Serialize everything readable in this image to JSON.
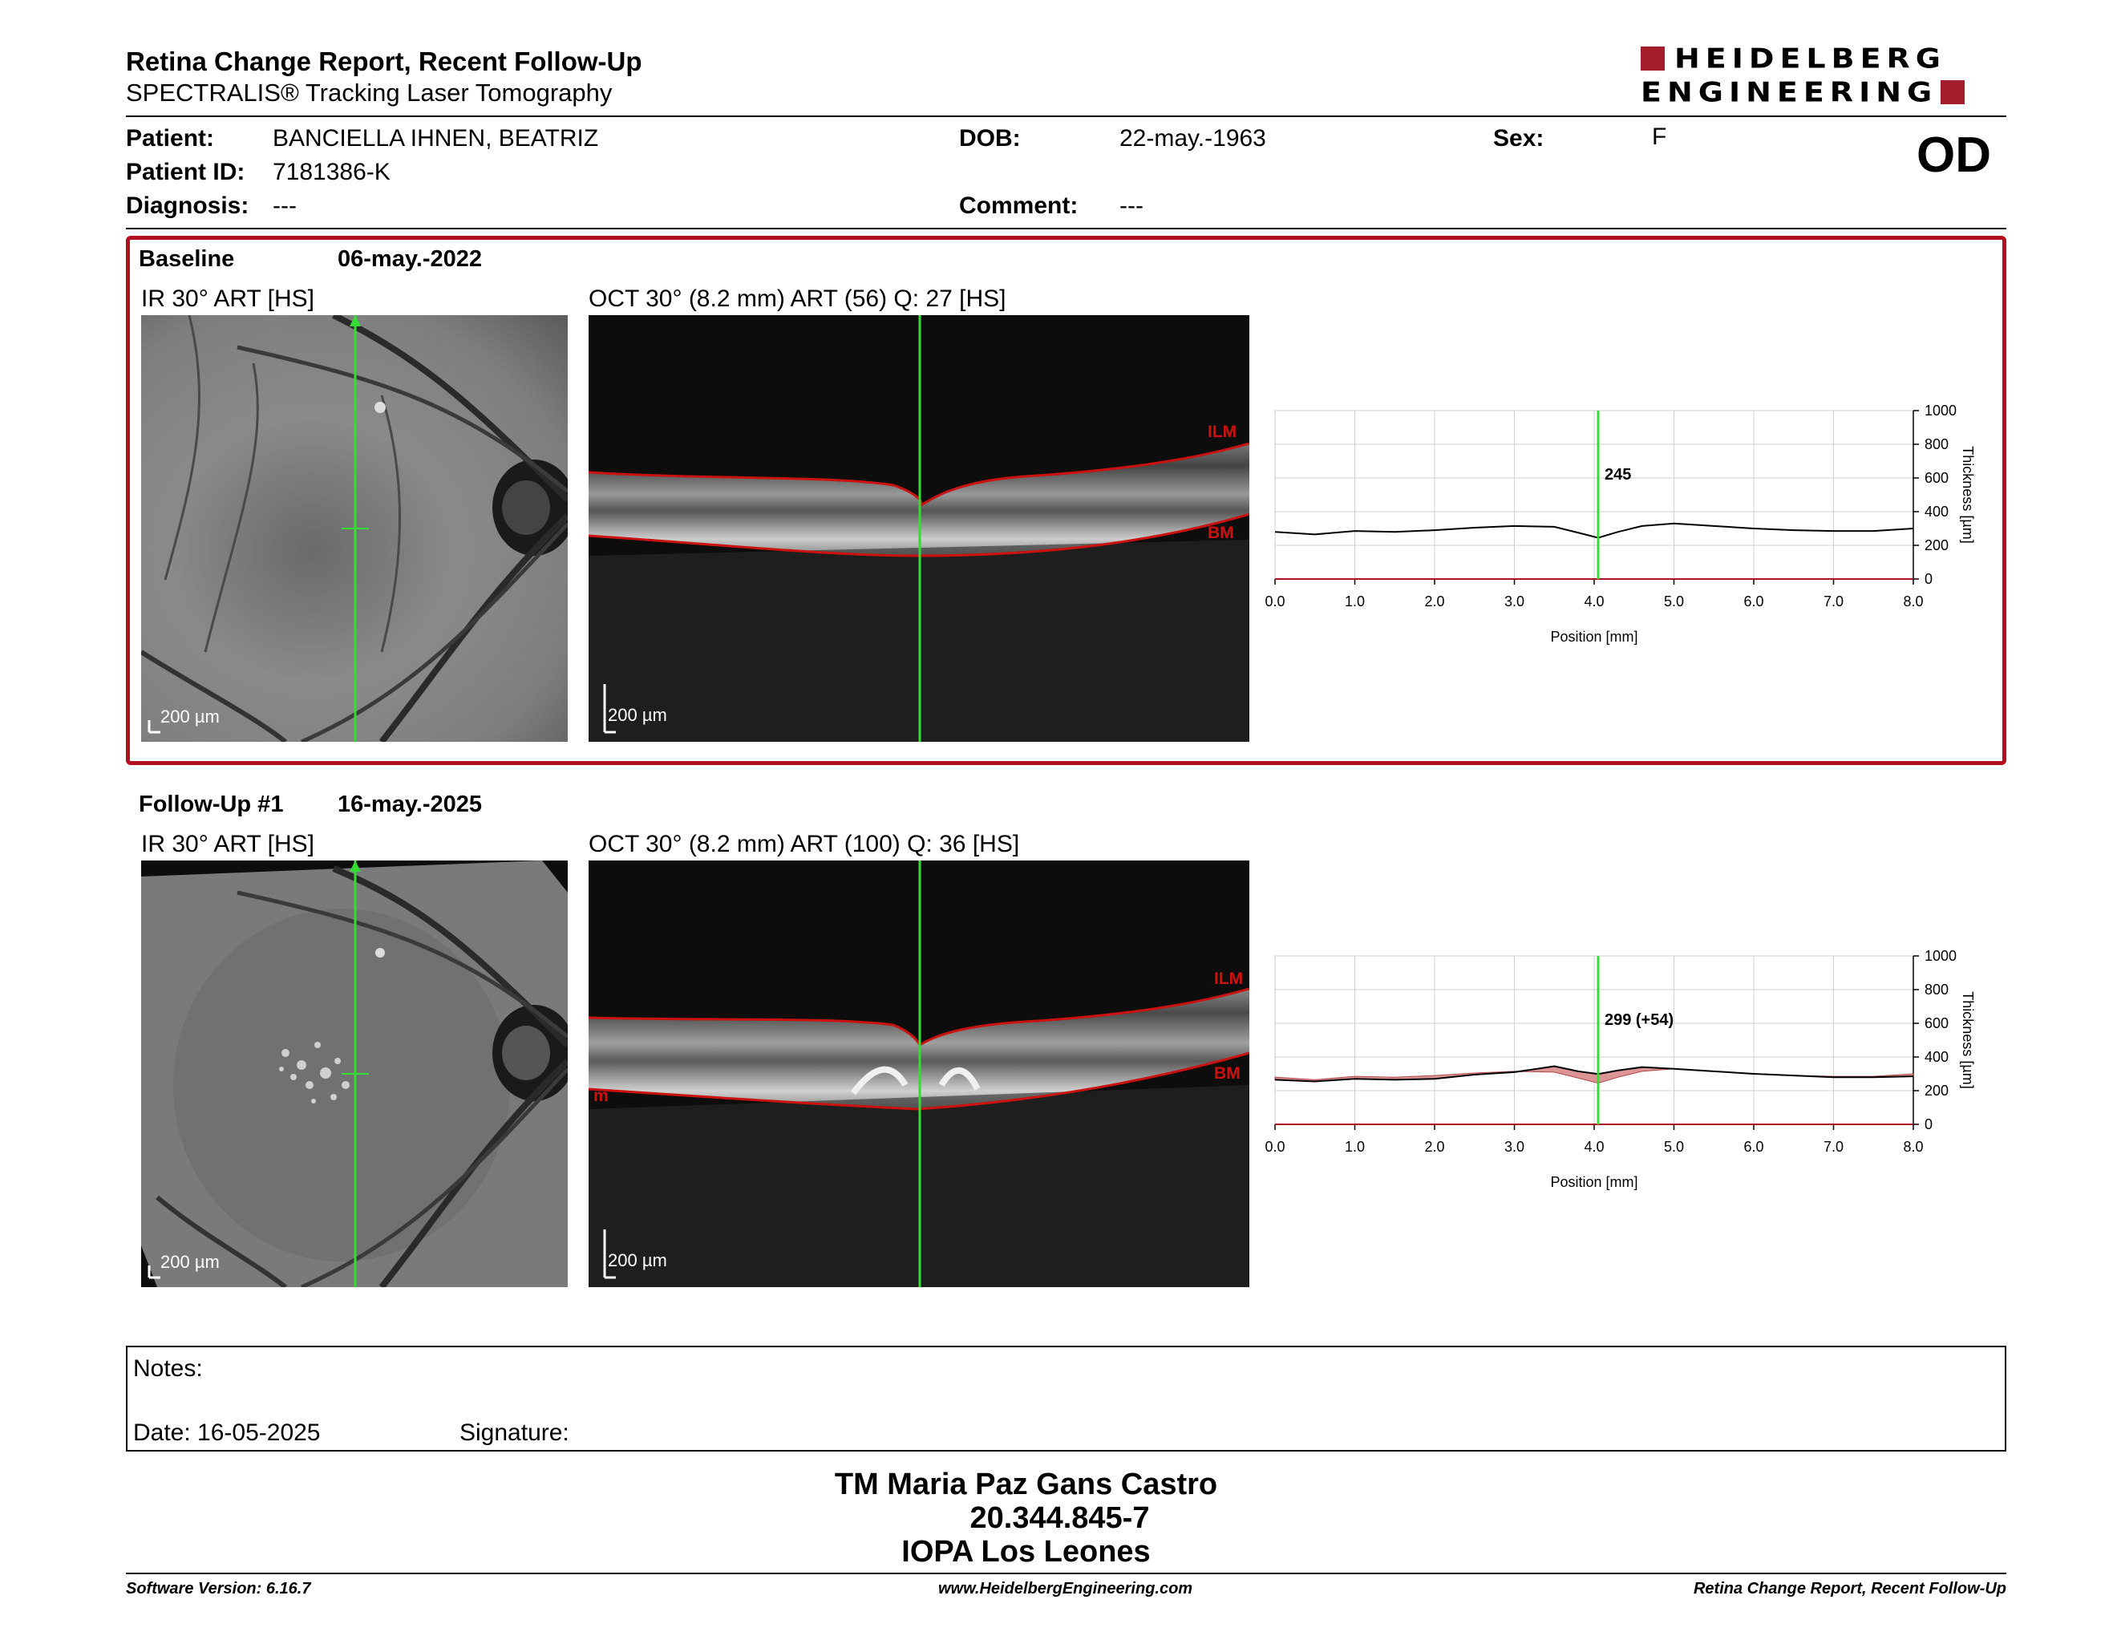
{
  "header": {
    "title": "Retina Change Report, Recent Follow-Up",
    "subtitle": "SPECTRALIS® Tracking Laser Tomography",
    "logo_line1": "HEIDELBERG",
    "logo_line2": "ENGINEERING"
  },
  "patient": {
    "patient_label": "Patient:",
    "patient_value": "BANCIELLA IHNEN, BEATRIZ",
    "id_label": "Patient ID:",
    "id_value": "7181386-K",
    "diagnosis_label": "Diagnosis:",
    "diagnosis_value": "---",
    "dob_label": "DOB:",
    "dob_value": "22-may.-1963",
    "comment_label": "Comment:",
    "comment_value": "---",
    "sex_label": "Sex:",
    "sex_value": "F",
    "eye": "OD"
  },
  "baseline": {
    "label": "Baseline",
    "date": "06-may.-2022",
    "ir_label": "IR 30° ART [HS]",
    "oct_label": "OCT 30° (8.2 mm) ART (56) Q: 27 [HS]",
    "scale_ir": "200 µm",
    "scale_oct": "200 µm",
    "ilm": "ILM",
    "bm": "BM"
  },
  "followup": {
    "label": "Follow-Up #1",
    "date": "16-may.-2025",
    "ir_label": "IR 30° ART [HS]",
    "oct_label": "OCT 30° (8.2 mm) ART (100) Q: 36 [HS]",
    "scale_ir": "200 µm",
    "scale_oct": "200 µm",
    "ilm": "ILM",
    "bm": "BM",
    "m": "m"
  },
  "chart_data": [
    {
      "type": "line",
      "x": [
        0.0,
        0.5,
        1.0,
        1.5,
        2.0,
        2.5,
        3.0,
        3.5,
        3.8,
        4.05,
        4.3,
        4.6,
        5.0,
        5.5,
        6.0,
        6.5,
        7.0,
        7.5,
        8.0
      ],
      "y": [
        280,
        265,
        285,
        280,
        290,
        305,
        315,
        310,
        275,
        245,
        280,
        315,
        330,
        315,
        300,
        290,
        285,
        285,
        300
      ],
      "marker_x": 4.05,
      "marker_label": "245",
      "xlabel": "Position [mm]",
      "ylabel": "Thickness [µm]",
      "xlim": [
        0,
        8
      ],
      "ylim": [
        0,
        1000
      ],
      "xticks": [
        "0.0",
        "1.0",
        "2.0",
        "3.0",
        "4.0",
        "5.0",
        "6.0",
        "7.0",
        "8.0"
      ],
      "yticks": [
        "0",
        "200",
        "400",
        "600",
        "800",
        "1000"
      ],
      "grid": true,
      "line_color": "#000000",
      "marker_color": "#33dd33"
    },
    {
      "type": "line",
      "x": [
        0.0,
        0.5,
        1.0,
        1.5,
        2.0,
        2.5,
        3.0,
        3.5,
        3.8,
        4.05,
        4.3,
        4.6,
        5.0,
        5.5,
        6.0,
        6.5,
        7.0,
        7.5,
        8.0
      ],
      "y": [
        265,
        255,
        270,
        265,
        270,
        295,
        310,
        345,
        315,
        299,
        320,
        340,
        330,
        315,
        300,
        290,
        280,
        280,
        285
      ],
      "baseline_y": [
        280,
        265,
        285,
        280,
        290,
        305,
        315,
        310,
        275,
        245,
        280,
        315,
        330,
        315,
        300,
        290,
        285,
        285,
        300
      ],
      "marker_x": 4.05,
      "marker_label": "299 (+54)",
      "xlabel": "Position [mm]",
      "ylabel": "Thickness [µm]",
      "xlim": [
        0,
        8
      ],
      "ylim": [
        0,
        1000
      ],
      "xticks": [
        "0.0",
        "1.0",
        "2.0",
        "3.0",
        "4.0",
        "5.0",
        "6.0",
        "7.0",
        "8.0"
      ],
      "yticks": [
        "0",
        "200",
        "400",
        "600",
        "800",
        "1000"
      ],
      "grid": true,
      "line_color": "#000000",
      "change_color": "#d98a8a",
      "marker_color": "#33dd33"
    }
  ],
  "notes": {
    "notes_label": "Notes:",
    "date_label": "Date: 16-05-2025",
    "signature_label": "Signature:"
  },
  "signature": {
    "line1": "TM Maria Paz Gans Castro",
    "line2": "20.344.845-7",
    "line3": "IOPA Los Leones"
  },
  "footer": {
    "left": "Software Version: 6.16.7",
    "center": "www.HeidelbergEngineering.com",
    "right": "Retina Change Report, Recent Follow-Up"
  }
}
